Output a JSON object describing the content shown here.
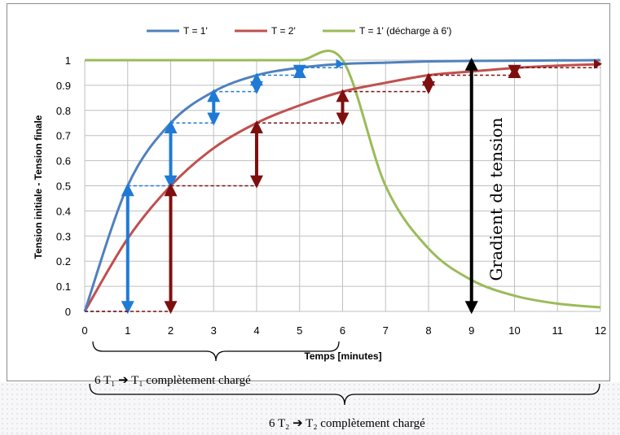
{
  "chart_data": {
    "type": "line",
    "title": "",
    "xlabel": "Temps [minutes]",
    "ylabel": "Tension initiale - Tension finale",
    "xlim": [
      0,
      12
    ],
    "ylim": [
      0,
      1
    ],
    "x_ticks": [
      "0",
      "1",
      "2",
      "3",
      "4",
      "5",
      "6",
      "7",
      "8",
      "9",
      "10",
      "11",
      "12"
    ],
    "y_ticks": [
      "0",
      "0.1",
      "0.2",
      "0.3",
      "0.4",
      "0.5",
      "0.6",
      "0.7",
      "0.8",
      "0.9",
      "1"
    ],
    "grid": true,
    "legend_position": "top",
    "series": [
      {
        "name": "T = 1'",
        "color": "#4f81bd",
        "x": [
          0,
          1,
          2,
          3,
          4,
          5,
          6,
          7,
          8,
          9,
          10,
          11,
          12
        ],
        "y": [
          0,
          0.5,
          0.75,
          0.875,
          0.94,
          0.97,
          0.985,
          0.99,
          0.995,
          0.997,
          0.998,
          0.999,
          1.0
        ]
      },
      {
        "name": "T = 2'",
        "color": "#c0504d",
        "x": [
          0,
          1,
          2,
          3,
          4,
          5,
          6,
          7,
          8,
          9,
          10,
          11,
          12
        ],
        "y": [
          0,
          0.29,
          0.5,
          0.65,
          0.75,
          0.82,
          0.875,
          0.91,
          0.94,
          0.955,
          0.969,
          0.978,
          0.984
        ]
      },
      {
        "name": "T = 1' (décharge à 6')",
        "color": "#9bbb59",
        "x": [
          0,
          1,
          2,
          3,
          4,
          5,
          6,
          7,
          8,
          9,
          10,
          11,
          12
        ],
        "y": [
          1,
          1,
          1,
          1,
          1,
          1,
          1,
          0.5,
          0.25,
          0.125,
          0.0625,
          0.031,
          0.016
        ]
      }
    ],
    "annotations": {
      "gradient_label": "Gradient de tension",
      "blue_steps": [
        [
          0,
          0
        ],
        [
          1,
          0.5
        ],
        [
          2,
          0.75
        ],
        [
          3,
          0.875
        ],
        [
          4,
          0.94
        ],
        [
          5,
          0.97
        ],
        [
          6,
          0.985
        ]
      ],
      "red_steps": [
        [
          0,
          0
        ],
        [
          2,
          0.5
        ],
        [
          4,
          0.75
        ],
        [
          6,
          0.875
        ],
        [
          8,
          0.94
        ],
        [
          10,
          0.97
        ],
        [
          12,
          0.985
        ]
      ],
      "gradient_arrow": {
        "x": 9,
        "y_from": 0,
        "y_to": 1
      }
    }
  },
  "captions": {
    "t1": "6 T₁  ➔ T₁ complètement chargé",
    "t2": "6 T₂  ➔ T₂ complètement chargé"
  },
  "colors": {
    "blue": "#4f81bd",
    "blue_arrow": "#1f7ad6",
    "red": "#c0504d",
    "red_arrow": "#7f0f0f",
    "green": "#9bbb59",
    "grid": "#bfbfbf"
  }
}
